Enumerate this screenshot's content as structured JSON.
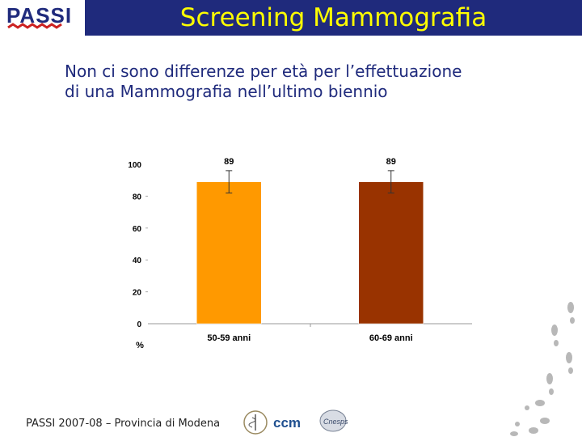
{
  "header": {
    "title": "Screening Mammografia",
    "logo_text": "PASSI",
    "band_color": "#1f2a7c",
    "title_color": "#ffff00"
  },
  "subtitle": {
    "line1": "Non ci sono differenze per età per l’effettuazione",
    "line2": "di una Mammografia nell’ultimo biennio"
  },
  "chart_data": {
    "type": "bar",
    "categories": [
      "50-59 anni",
      "60-69 anni"
    ],
    "values": [
      89,
      89
    ],
    "error_bars": [
      [
        82,
        96
      ],
      [
        82,
        96
      ]
    ],
    "data_labels": [
      "89",
      "89"
    ],
    "colors": [
      "#ff9900",
      "#993300"
    ],
    "ylim": [
      0,
      100
    ],
    "yticks": [
      0,
      20,
      40,
      60,
      80,
      100
    ],
    "ylabel": "%",
    "grid": false
  },
  "footer": {
    "source": "PASSI 2007-08 – Provincia di Modena",
    "logos": [
      "ministero-salute-logo",
      "ccm-logo",
      "cnesps-logo"
    ],
    "ccm_text": "ccm",
    "cnesps_text": "Cnesps"
  }
}
